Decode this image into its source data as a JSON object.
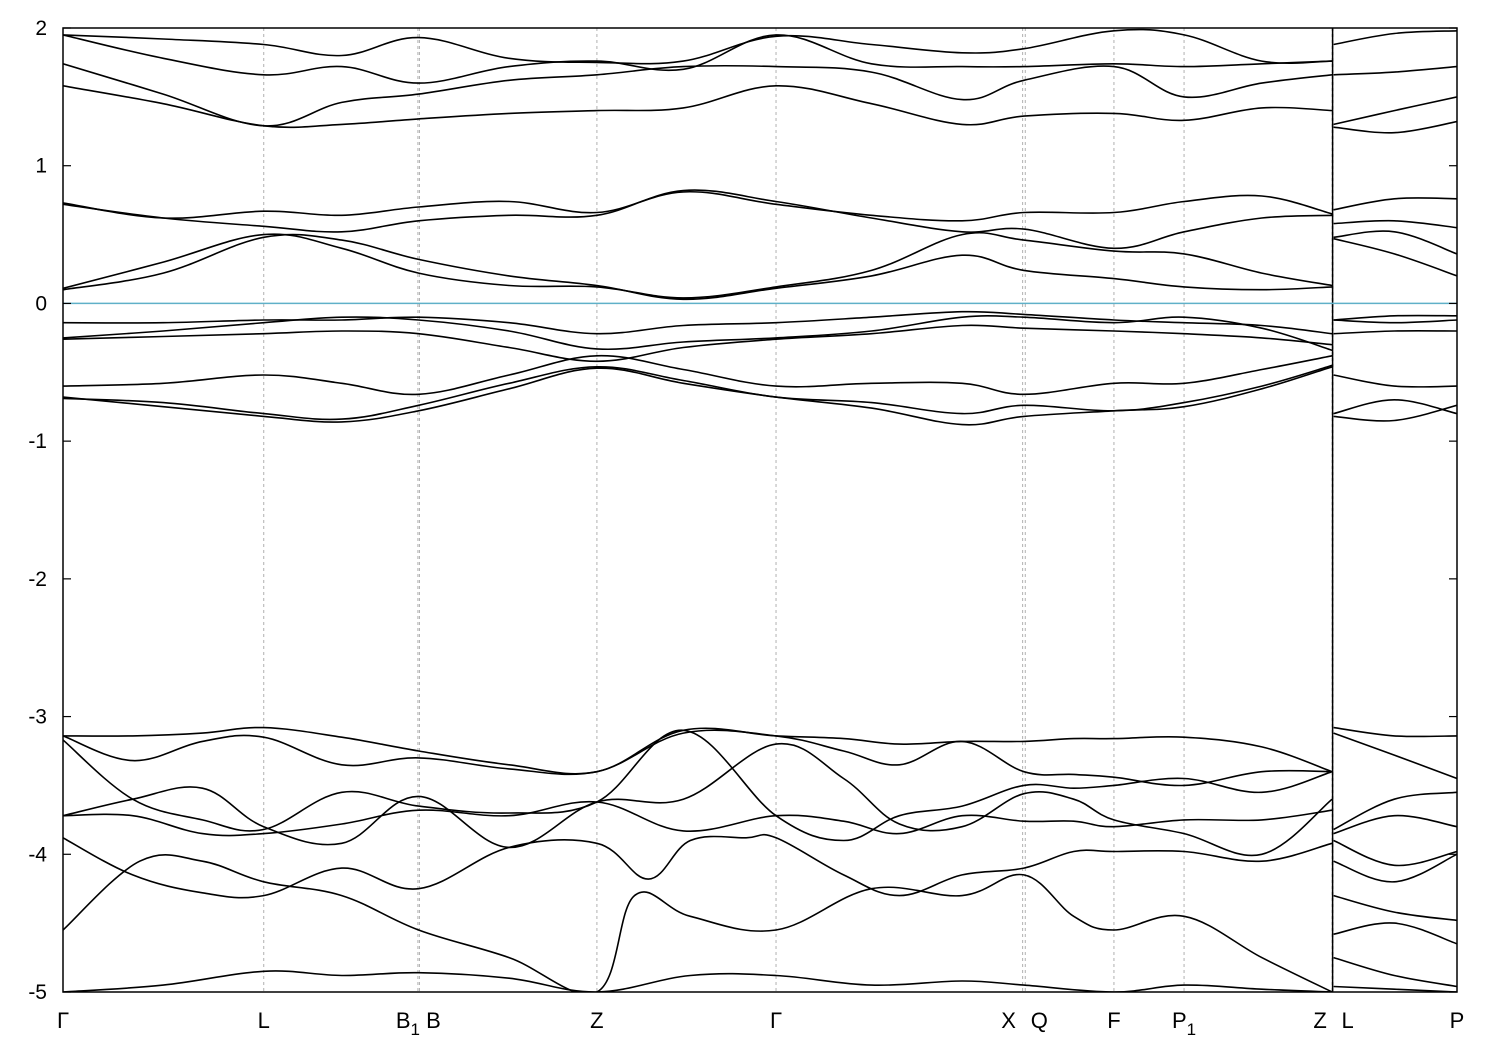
{
  "chart_data": {
    "type": "line",
    "title": "",
    "xlabel": "",
    "ylabel": "",
    "ylim": [
      -5,
      2
    ],
    "yticks": [
      2,
      1,
      0,
      -1,
      -2,
      -3,
      -4,
      -5
    ],
    "ytick_labels": [
      "2",
      "1",
      "0",
      "-1",
      "-2",
      "-3",
      "-4",
      "-5"
    ],
    "fermi_level": 0,
    "colors": {
      "bands": "#000000",
      "fermi": "#5fb0c8",
      "gridline": "#b0b0b0",
      "axis": "#000000"
    },
    "kpoints": [
      {
        "name": "gamma-start",
        "x": 0.0,
        "label": "Γ"
      },
      {
        "name": "l",
        "x": 0.144,
        "label": "L"
      },
      {
        "name": "b1",
        "x": 0.2546,
        "label": "B",
        "sub": "1"
      },
      {
        "name": "b",
        "x": 0.2557,
        "label": "B"
      },
      {
        "name": "z-1",
        "x": 0.383,
        "label": "Z"
      },
      {
        "name": "gamma-mid",
        "x": 0.5115,
        "label": "Γ"
      },
      {
        "name": "x",
        "x": 0.6884,
        "label": "X"
      },
      {
        "name": "q",
        "x": 0.6903,
        "label": "Q"
      },
      {
        "name": "f",
        "x": 0.7539,
        "label": "F"
      },
      {
        "name": "p1",
        "x": 0.8042,
        "label": "P",
        "sub": "1"
      },
      {
        "name": "z-2",
        "x": 0.9104,
        "label": "Z"
      },
      {
        "name": "l-2",
        "x": 0.9115,
        "label": "L"
      },
      {
        "name": "p",
        "x": 1.0,
        "label": "P"
      }
    ],
    "discontinuities": [
      0.9104
    ],
    "series": [
      {
        "x": [
          0.0,
          0.0719,
          0.144,
          0.2,
          0.2551,
          0.32,
          0.383,
          0.45,
          0.5115,
          0.58,
          0.645,
          0.6893,
          0.7539,
          0.8042,
          0.86,
          0.9104
        ],
        "values": [
          -5.0,
          -4.95,
          -4.85,
          -4.88,
          -4.86,
          -4.9,
          -5.0,
          -4.88,
          -4.88,
          -4.95,
          -4.92,
          -4.95,
          -5.0,
          -4.95,
          -4.98,
          -5.0
        ]
      },
      {
        "x": [
          0.0,
          0.055,
          0.1,
          0.144,
          0.2,
          0.2551,
          0.32,
          0.383,
          0.41,
          0.45,
          0.5115,
          0.58,
          0.645,
          0.6893,
          0.725,
          0.7539,
          0.8042,
          0.86,
          0.9104
        ],
        "values": [
          -4.55,
          -4.05,
          -4.05,
          -4.2,
          -4.3,
          -4.55,
          -4.75,
          -5.0,
          -4.3,
          -4.45,
          -4.55,
          -4.25,
          -4.3,
          -4.15,
          -4.45,
          -4.55,
          -4.45,
          -4.75,
          -5.0
        ]
      },
      {
        "x": [
          0.0,
          0.05,
          0.1,
          0.144,
          0.2,
          0.2551,
          0.32,
          0.383,
          0.42,
          0.45,
          0.49,
          0.5115,
          0.56,
          0.6,
          0.645,
          0.6893,
          0.725,
          0.7539,
          0.8042,
          0.86,
          0.9104
        ],
        "values": [
          -3.88,
          -4.15,
          -4.28,
          -4.3,
          -4.1,
          -4.25,
          -3.95,
          -3.92,
          -4.18,
          -3.9,
          -3.88,
          -3.88,
          -4.15,
          -4.3,
          -4.15,
          -4.1,
          -3.98,
          -3.98,
          -3.98,
          -4.05,
          -3.92
        ]
      },
      {
        "x": [
          0.0,
          0.05,
          0.1,
          0.144,
          0.2,
          0.2551,
          0.32,
          0.383,
          0.445,
          0.5115,
          0.56,
          0.6,
          0.645,
          0.6893,
          0.725,
          0.7539,
          0.8042,
          0.86,
          0.9104
        ],
        "values": [
          -3.72,
          -3.72,
          -3.85,
          -3.85,
          -3.78,
          -3.68,
          -3.72,
          -3.62,
          -3.83,
          -3.72,
          -3.76,
          -3.85,
          -3.72,
          -3.76,
          -3.76,
          -3.8,
          -3.75,
          -3.75,
          -3.68
        ]
      },
      {
        "x": [
          0.0,
          0.05,
          0.1,
          0.144,
          0.2,
          0.2551,
          0.32,
          0.383,
          0.445,
          0.5115,
          0.56,
          0.6,
          0.645,
          0.6893,
          0.725,
          0.7539,
          0.8042,
          0.86,
          0.9104
        ],
        "values": [
          -3.72,
          -3.6,
          -3.52,
          -3.8,
          -3.92,
          -3.58,
          -3.95,
          -3.62,
          -3.6,
          -3.2,
          -3.45,
          -3.78,
          -3.8,
          -3.56,
          -3.6,
          -3.75,
          -3.85,
          -4.0,
          -3.6
        ]
      },
      {
        "x": [
          0.0,
          0.05,
          0.1,
          0.144,
          0.2,
          0.2551,
          0.32,
          0.383,
          0.445,
          0.5115,
          0.56,
          0.6,
          0.645,
          0.6893,
          0.725,
          0.7539,
          0.8042,
          0.86,
          0.9104
        ],
        "values": [
          -3.17,
          -3.6,
          -3.75,
          -3.82,
          -3.55,
          -3.65,
          -3.7,
          -3.62,
          -3.1,
          -3.72,
          -3.9,
          -3.72,
          -3.65,
          -3.5,
          -3.52,
          -3.5,
          -3.45,
          -3.55,
          -3.4
        ]
      },
      {
        "x": [
          0.0,
          0.05,
          0.1,
          0.144,
          0.2,
          0.2551,
          0.32,
          0.383,
          0.445,
          0.5115,
          0.56,
          0.6,
          0.645,
          0.6893,
          0.725,
          0.7539,
          0.8042,
          0.86,
          0.9104
        ],
        "values": [
          -3.14,
          -3.32,
          -3.18,
          -3.15,
          -3.35,
          -3.3,
          -3.38,
          -3.4,
          -3.12,
          -3.14,
          -3.25,
          -3.35,
          -3.18,
          -3.4,
          -3.42,
          -3.44,
          -3.5,
          -3.4,
          -3.4
        ]
      },
      {
        "x": [
          0.0,
          0.05,
          0.1,
          0.144,
          0.2,
          0.2551,
          0.32,
          0.383,
          0.445,
          0.5115,
          0.56,
          0.6,
          0.645,
          0.6893,
          0.725,
          0.7539,
          0.8042,
          0.86,
          0.9104
        ],
        "values": [
          -3.14,
          -3.14,
          -3.12,
          -3.08,
          -3.15,
          -3.25,
          -3.35,
          -3.4,
          -3.1,
          -3.14,
          -3.16,
          -3.2,
          -3.18,
          -3.18,
          -3.16,
          -3.16,
          -3.15,
          -3.22,
          -3.4
        ]
      },
      {
        "x": [
          0.0,
          0.0719,
          0.144,
          0.2,
          0.2551,
          0.32,
          0.383,
          0.445,
          0.5115,
          0.58,
          0.645,
          0.6893,
          0.7539,
          0.8042,
          0.86,
          0.9104
        ],
        "values": [
          -0.68,
          -0.75,
          -0.82,
          -0.86,
          -0.78,
          -0.62,
          -0.47,
          -0.58,
          -0.68,
          -0.76,
          -0.88,
          -0.82,
          -0.78,
          -0.75,
          -0.62,
          -0.46
        ]
      },
      {
        "x": [
          0.0,
          0.0719,
          0.144,
          0.2,
          0.2551,
          0.32,
          0.383,
          0.445,
          0.5115,
          0.58,
          0.645,
          0.6893,
          0.7539,
          0.8042,
          0.86,
          0.9104
        ],
        "values": [
          -0.69,
          -0.72,
          -0.8,
          -0.84,
          -0.74,
          -0.58,
          -0.46,
          -0.56,
          -0.68,
          -0.72,
          -0.8,
          -0.74,
          -0.78,
          -0.72,
          -0.6,
          -0.45
        ]
      },
      {
        "x": [
          0.0,
          0.0719,
          0.144,
          0.2,
          0.2551,
          0.32,
          0.383,
          0.445,
          0.5115,
          0.58,
          0.645,
          0.6893,
          0.7539,
          0.8042,
          0.86,
          0.9104
        ],
        "values": [
          -0.6,
          -0.58,
          -0.52,
          -0.58,
          -0.66,
          -0.52,
          -0.38,
          -0.48,
          -0.6,
          -0.58,
          -0.58,
          -0.66,
          -0.58,
          -0.58,
          -0.48,
          -0.38
        ]
      },
      {
        "x": [
          0.0,
          0.0719,
          0.144,
          0.2,
          0.2551,
          0.32,
          0.383,
          0.445,
          0.5115,
          0.58,
          0.645,
          0.6893,
          0.7539,
          0.8042,
          0.86,
          0.9104
        ],
        "values": [
          -0.26,
          -0.24,
          -0.22,
          -0.2,
          -0.22,
          -0.32,
          -0.42,
          -0.32,
          -0.26,
          -0.22,
          -0.16,
          -0.18,
          -0.2,
          -0.22,
          -0.25,
          -0.3
        ]
      },
      {
        "x": [
          0.0,
          0.0719,
          0.144,
          0.2,
          0.2551,
          0.32,
          0.383,
          0.445,
          0.5115,
          0.58,
          0.645,
          0.6893,
          0.7539,
          0.8042,
          0.86,
          0.9104
        ],
        "values": [
          -0.25,
          -0.2,
          -0.14,
          -0.1,
          -0.12,
          -0.2,
          -0.33,
          -0.28,
          -0.25,
          -0.2,
          -0.1,
          -0.1,
          -0.14,
          -0.1,
          -0.18,
          -0.34
        ]
      },
      {
        "x": [
          0.0,
          0.0719,
          0.144,
          0.2,
          0.2551,
          0.32,
          0.383,
          0.445,
          0.5115,
          0.58,
          0.645,
          0.6893,
          0.7539,
          0.8042,
          0.86,
          0.9104
        ],
        "values": [
          -0.14,
          -0.14,
          -0.12,
          -0.12,
          -0.1,
          -0.14,
          -0.22,
          -0.16,
          -0.14,
          -0.1,
          -0.06,
          -0.08,
          -0.12,
          -0.14,
          -0.16,
          -0.22
        ]
      },
      {
        "x": [
          0.0,
          0.0719,
          0.144,
          0.2,
          0.2551,
          0.32,
          0.383,
          0.445,
          0.5115,
          0.58,
          0.645,
          0.6893,
          0.7539,
          0.8042,
          0.86,
          0.9104
        ],
        "values": [
          0.1,
          0.22,
          0.48,
          0.46,
          0.32,
          0.2,
          0.13,
          0.03,
          0.11,
          0.2,
          0.35,
          0.24,
          0.18,
          0.12,
          0.1,
          0.12
        ]
      },
      {
        "x": [
          0.0,
          0.0719,
          0.144,
          0.2,
          0.2551,
          0.32,
          0.383,
          0.445,
          0.5115,
          0.58,
          0.645,
          0.6893,
          0.7539,
          0.8042,
          0.86,
          0.9104
        ],
        "values": [
          0.11,
          0.3,
          0.5,
          0.4,
          0.22,
          0.13,
          0.12,
          0.04,
          0.12,
          0.24,
          0.5,
          0.46,
          0.38,
          0.36,
          0.22,
          0.13
        ]
      },
      {
        "x": [
          0.0,
          0.0719,
          0.144,
          0.2,
          0.2551,
          0.32,
          0.383,
          0.445,
          0.5115,
          0.58,
          0.645,
          0.6893,
          0.7539,
          0.8042,
          0.86,
          0.9104
        ],
        "values": [
          0.72,
          0.62,
          0.56,
          0.52,
          0.6,
          0.64,
          0.64,
          0.82,
          0.74,
          0.62,
          0.52,
          0.54,
          0.4,
          0.52,
          0.62,
          0.64
        ]
      },
      {
        "x": [
          0.0,
          0.0719,
          0.144,
          0.2,
          0.2551,
          0.32,
          0.383,
          0.445,
          0.5115,
          0.58,
          0.645,
          0.6893,
          0.7539,
          0.8042,
          0.86,
          0.9104
        ],
        "values": [
          0.73,
          0.62,
          0.67,
          0.64,
          0.7,
          0.74,
          0.66,
          0.81,
          0.72,
          0.64,
          0.6,
          0.66,
          0.66,
          0.74,
          0.78,
          0.65
        ]
      },
      {
        "x": [
          0.0,
          0.0719,
          0.144,
          0.2,
          0.2551,
          0.32,
          0.383,
          0.445,
          0.5115,
          0.58,
          0.645,
          0.6893,
          0.7539,
          0.8042,
          0.86,
          0.9104
        ],
        "values": [
          1.58,
          1.45,
          1.29,
          1.3,
          1.34,
          1.38,
          1.4,
          1.42,
          1.58,
          1.45,
          1.3,
          1.36,
          1.38,
          1.33,
          1.42,
          1.4
        ]
      },
      {
        "x": [
          0.0,
          0.0719,
          0.144,
          0.2,
          0.2551,
          0.32,
          0.383,
          0.445,
          0.5115,
          0.58,
          0.645,
          0.6893,
          0.7539,
          0.8042,
          0.86,
          0.9104
        ],
        "values": [
          1.74,
          1.52,
          1.29,
          1.46,
          1.52,
          1.62,
          1.66,
          1.72,
          1.72,
          1.68,
          1.48,
          1.62,
          1.72,
          1.5,
          1.6,
          1.66
        ]
      },
      {
        "x": [
          0.0,
          0.0719,
          0.144,
          0.2,
          0.2551,
          0.32,
          0.383,
          0.445,
          0.5115,
          0.58,
          0.645,
          0.6893,
          0.7539,
          0.8042,
          0.86,
          0.9104
        ],
        "values": [
          1.95,
          1.78,
          1.66,
          1.72,
          1.6,
          1.72,
          1.76,
          1.7,
          1.95,
          1.74,
          1.72,
          1.72,
          1.74,
          1.72,
          1.74,
          1.76
        ]
      },
      {
        "x": [
          0.0,
          0.0719,
          0.144,
          0.2,
          0.2551,
          0.32,
          0.383,
          0.445,
          0.5115,
          0.58,
          0.645,
          0.6893,
          0.7539,
          0.8042,
          0.86,
          0.9104
        ],
        "values": [
          1.95,
          1.92,
          1.88,
          1.8,
          1.93,
          1.78,
          1.75,
          1.76,
          1.94,
          1.88,
          1.82,
          1.85,
          1.98,
          1.95,
          1.76,
          1.76
        ]
      },
      {
        "x": [
          0.9115,
          0.955,
          1.0
        ],
        "values": [
          -3.08,
          -3.14,
          -3.14
        ]
      },
      {
        "x": [
          0.9115,
          0.955,
          1.0
        ],
        "values": [
          -3.12,
          -3.28,
          -3.45
        ]
      },
      {
        "x": [
          0.9115,
          0.955,
          1.0
        ],
        "values": [
          -3.82,
          -3.6,
          -3.55
        ]
      },
      {
        "x": [
          0.9115,
          0.955,
          1.0
        ],
        "values": [
          -3.85,
          -3.72,
          -3.8
        ]
      },
      {
        "x": [
          0.9115,
          0.955,
          1.0
        ],
        "values": [
          -3.9,
          -4.08,
          -3.98
        ]
      },
      {
        "x": [
          0.9115,
          0.955,
          1.0
        ],
        "values": [
          -4.05,
          -4.2,
          -4.0
        ]
      },
      {
        "x": [
          0.9115,
          0.955,
          1.0
        ],
        "values": [
          -4.3,
          -4.42,
          -4.48
        ]
      },
      {
        "x": [
          0.9115,
          0.955,
          1.0
        ],
        "values": [
          -4.58,
          -4.5,
          -4.65
        ]
      },
      {
        "x": [
          0.9115,
          0.955,
          1.0
        ],
        "values": [
          -4.75,
          -4.88,
          -4.96
        ]
      },
      {
        "x": [
          0.9115,
          0.955,
          1.0
        ],
        "values": [
          -4.96,
          -4.98,
          -5.0
        ]
      },
      {
        "x": [
          0.9115,
          0.955,
          1.0
        ],
        "values": [
          -0.52,
          -0.6,
          -0.6
        ]
      },
      {
        "x": [
          0.9115,
          0.955,
          1.0
        ],
        "values": [
          -0.8,
          -0.7,
          -0.8
        ]
      },
      {
        "x": [
          0.9115,
          0.955,
          1.0
        ],
        "values": [
          -0.82,
          -0.85,
          -0.74
        ]
      },
      {
        "x": [
          0.9115,
          0.955,
          1.0
        ],
        "values": [
          -0.12,
          -0.09,
          -0.09
        ]
      },
      {
        "x": [
          0.9115,
          0.955,
          1.0
        ],
        "values": [
          -0.12,
          -0.14,
          -0.12
        ]
      },
      {
        "x": [
          0.9115,
          0.955,
          1.0
        ],
        "values": [
          -0.22,
          -0.2,
          -0.2
        ]
      },
      {
        "x": [
          0.9115,
          0.955,
          1.0
        ],
        "values": [
          0.47,
          0.36,
          0.2
        ]
      },
      {
        "x": [
          0.9115,
          0.955,
          1.0
        ],
        "values": [
          0.48,
          0.52,
          0.36
        ]
      },
      {
        "x": [
          0.9115,
          0.955,
          1.0
        ],
        "values": [
          0.58,
          0.6,
          0.55
        ]
      },
      {
        "x": [
          0.9115,
          0.955,
          1.0
        ],
        "values": [
          0.68,
          0.76,
          0.76
        ]
      },
      {
        "x": [
          0.9115,
          0.955,
          1.0
        ],
        "values": [
          1.28,
          1.24,
          1.32
        ]
      },
      {
        "x": [
          0.9115,
          0.955,
          1.0
        ],
        "values": [
          1.3,
          1.4,
          1.5
        ]
      },
      {
        "x": [
          0.9115,
          0.955,
          1.0
        ],
        "values": [
          1.66,
          1.68,
          1.72
        ]
      },
      {
        "x": [
          0.9115,
          0.955,
          1.0
        ],
        "values": [
          1.88,
          1.96,
          1.98
        ]
      }
    ]
  }
}
